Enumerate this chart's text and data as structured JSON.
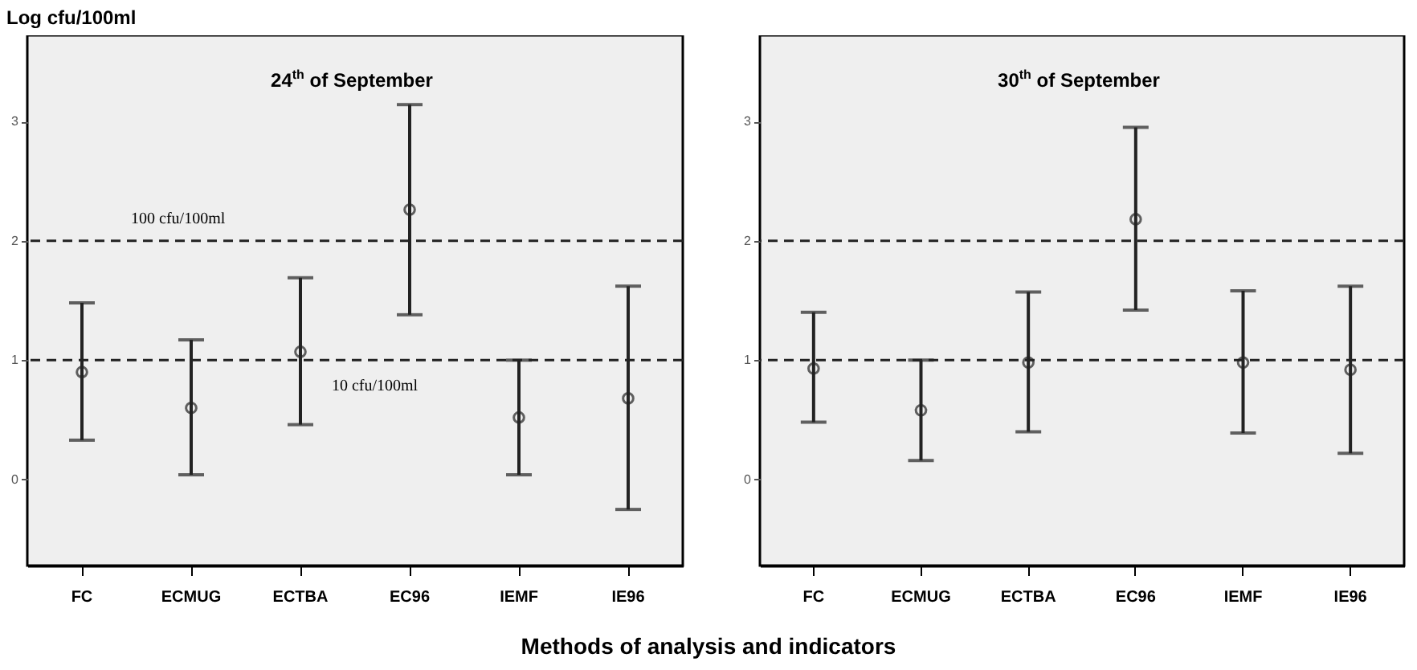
{
  "chart_data": [
    {
      "type": "scatter",
      "title": "24$^{th}$ of September",
      "ylabel": "Log cfu/100ml",
      "xlabel": "Methods of analysis and indicators",
      "categories": [
        "FC",
        "ECMUG",
        "ECTBA",
        "EC96",
        "IEMF",
        "IE96"
      ],
      "series": [
        {
          "color": "#222222",
          "values": [
            0.9,
            0.6,
            1.07,
            2.26,
            0.52,
            0.68
          ],
          "errors": [
            [
              0.33,
              1.48
            ],
            [
              0.04,
              1.17
            ],
            [
              0.46,
              1.69
            ],
            [
              1.38,
              3.14
            ],
            [
              0.04,
              1.0
            ],
            [
              -0.25,
              1.62
            ]
          ]
        }
      ],
      "marker": "circle",
      "ylim": [
        -0.72,
        3.72
      ],
      "yticks": [
        0,
        1,
        2,
        3
      ],
      "grid": false,
      "ref_lines": [
        {
          "axis": "y",
          "value": 2,
          "label": "100 cfu/100ml",
          "line_style": "dashed",
          "color": "#222222"
        },
        {
          "axis": "y",
          "value": 1,
          "label": "10 cfu/100ml",
          "line_style": "dashed",
          "color": "#222222"
        }
      ]
    },
    {
      "type": "scatter",
      "title": "30$^{th}$ of September",
      "categories": [
        "FC",
        "ECMUG",
        "ECTBA",
        "EC96",
        "IEMF",
        "IE96"
      ],
      "series": [
        {
          "color": "#222222",
          "values": [
            0.93,
            0.58,
            0.98,
            2.18,
            0.98,
            0.92
          ],
          "errors": [
            [
              0.48,
              1.4
            ],
            [
              0.16,
              1.0
            ],
            [
              0.4,
              1.57
            ],
            [
              1.42,
              2.95
            ],
            [
              0.39,
              1.58
            ],
            [
              0.22,
              1.62
            ]
          ]
        }
      ],
      "marker": "circle",
      "ylim": [
        -0.72,
        3.72
      ],
      "yticks": [
        0,
        1,
        2,
        3
      ],
      "grid": false,
      "ref_lines": [
        {
          "axis": "y",
          "value": 2,
          "line_style": "dashed",
          "color": "#222222"
        },
        {
          "axis": "y",
          "value": 1,
          "line_style": "dashed",
          "color": "#222222"
        }
      ]
    }
  ]
}
